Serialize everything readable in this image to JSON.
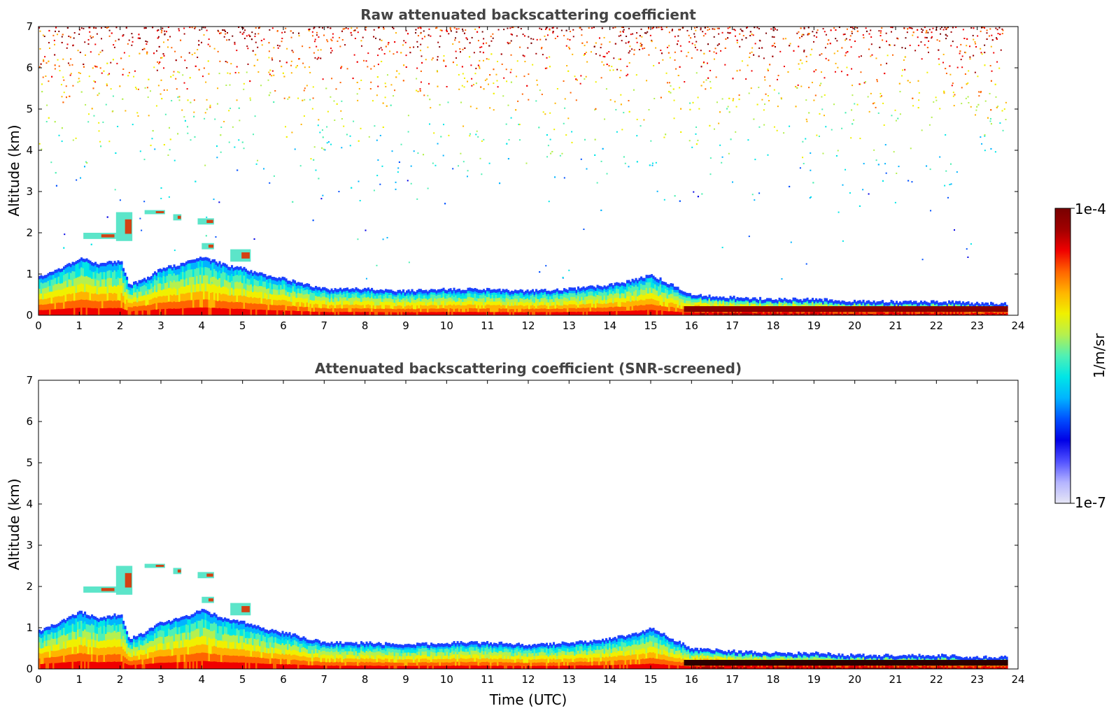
{
  "chart_data": [
    {
      "type": "heatmap",
      "title": "Raw attenuated backscattering coefficient",
      "xlabel": "",
      "ylabel": "Altitude (km)",
      "xlim": [
        0,
        24
      ],
      "ylim": [
        0,
        7
      ],
      "xticks": [
        "0",
        "1",
        "2",
        "3",
        "4",
        "5",
        "6",
        "7",
        "8",
        "9",
        "10",
        "11",
        "12",
        "13",
        "14",
        "15",
        "16",
        "17",
        "18",
        "19",
        "20",
        "21",
        "22",
        "23",
        "24"
      ],
      "yticks": [
        "0",
        "1",
        "2",
        "3",
        "4",
        "5",
        "6",
        "7"
      ],
      "boundary_layer_top_km": {
        "x": [
          0,
          0.5,
          1,
          1.5,
          2,
          2.2,
          2.5,
          3,
          3.5,
          4,
          4.5,
          5,
          5.5,
          6,
          7,
          8,
          9,
          10,
          11,
          12,
          13,
          14,
          14.5,
          15,
          15.5,
          16,
          17,
          18,
          19,
          20,
          21,
          22,
          23,
          23.7
        ],
        "y": [
          0.9,
          1.1,
          1.35,
          1.2,
          1.3,
          0.7,
          0.8,
          1.1,
          1.2,
          1.4,
          1.2,
          1.1,
          0.95,
          0.85,
          0.6,
          0.6,
          0.55,
          0.6,
          0.6,
          0.55,
          0.6,
          0.7,
          0.8,
          0.95,
          0.7,
          0.45,
          0.4,
          0.35,
          0.35,
          0.3,
          0.3,
          0.3,
          0.25,
          0.25
        ]
      },
      "cloud_layers": [
        {
          "x": [
            1.1,
            1.9
          ],
          "y": [
            1.85,
            2.0
          ]
        },
        {
          "x": [
            1.9,
            2.3
          ],
          "y": [
            1.8,
            2.5
          ]
        },
        {
          "x": [
            2.6,
            3.1
          ],
          "y": [
            2.45,
            2.55
          ]
        },
        {
          "x": [
            3.3,
            3.5
          ],
          "y": [
            2.3,
            2.45
          ]
        },
        {
          "x": [
            3.9,
            4.3
          ],
          "y": [
            2.2,
            2.35
          ]
        },
        {
          "x": [
            4.0,
            4.3
          ],
          "y": [
            1.6,
            1.75
          ]
        },
        {
          "x": [
            4.7,
            5.2
          ],
          "y": [
            1.3,
            1.6
          ]
        }
      ]
    },
    {
      "type": "heatmap",
      "title": "Attenuated backscattering coefficient (SNR-screened)",
      "xlabel": "Time (UTC)",
      "ylabel": "Altitude (km)",
      "xlim": [
        0,
        24
      ],
      "ylim": [
        0,
        7
      ],
      "xticks": [
        "0",
        "1",
        "2",
        "3",
        "4",
        "5",
        "6",
        "7",
        "8",
        "9",
        "10",
        "11",
        "12",
        "13",
        "14",
        "15",
        "16",
        "17",
        "18",
        "19",
        "20",
        "21",
        "22",
        "23",
        "24"
      ],
      "yticks": [
        "0",
        "1",
        "2",
        "3",
        "4",
        "5",
        "6",
        "7"
      ]
    }
  ],
  "colorbar": {
    "max_label": "1e-4",
    "min_label": "1e-7",
    "label": "1/m/sr",
    "colors": [
      "#e6e6f5",
      "#b4b4ff",
      "#5050ff",
      "#0000e6",
      "#0050ff",
      "#00b4ff",
      "#00e6e6",
      "#50f0b4",
      "#b4f050",
      "#f0f000",
      "#ffb400",
      "#ff6400",
      "#f00000",
      "#a00000",
      "#780000"
    ]
  }
}
